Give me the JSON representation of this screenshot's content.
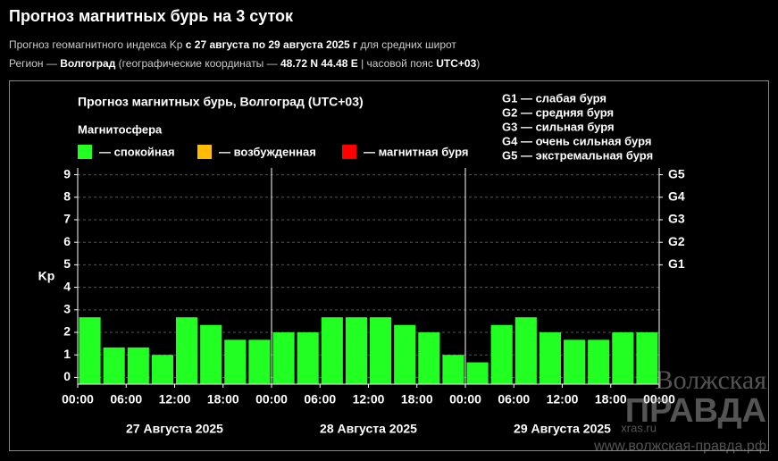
{
  "header": {
    "title": "Прогноз магнитных бурь на 3 суток",
    "line1": [
      "Прогноз геомагнитного индекса Kp",
      "с 27 августа по 29 августа 2025 г",
      "для средних широт"
    ],
    "line2": [
      "Регион —",
      "Волгоград",
      "(географические координаты —",
      "48.72 N 44.48 E",
      "| часовой пояс",
      "UTC+03",
      ")"
    ]
  },
  "watermark": [
    "Волжская",
    "ПРАВДА",
    "xras.ru",
    "www.волжская-правда.рф"
  ],
  "chart_data": {
    "type": "bar",
    "title": "Прогноз магнитных бурь, Волгоград (UTC+03)",
    "legend_title": "Магнитосфера",
    "legend": [
      {
        "name": "— спокойная",
        "color": "#22ff22"
      },
      {
        "name": "— возбужденная",
        "color": "#ffbb00"
      },
      {
        "name": "— магнитная буря",
        "color": "#ff0000"
      }
    ],
    "notes": [
      "G1 — слабая буря",
      "G2 — средняя буря",
      "G3 — сильная буря",
      "G4 — очень сильная буря",
      "G5 — экстремальная буря"
    ],
    "ylabel": "Kp",
    "x": [
      0,
      3,
      6,
      9,
      12,
      15,
      18,
      21,
      24,
      27,
      30,
      33,
      36,
      39,
      42,
      45,
      48,
      51,
      54,
      57,
      60,
      63,
      66,
      69
    ],
    "values": [
      2.67,
      1.33,
      1.33,
      1.0,
      2.67,
      2.33,
      1.67,
      1.67,
      2.0,
      2.0,
      2.67,
      2.67,
      2.67,
      2.33,
      2.0,
      1.0,
      0.67,
      2.33,
      2.67,
      2.0,
      1.67,
      1.67,
      2.0,
      2.0
    ],
    "color": "#22ff22",
    "xlim": [
      0,
      72
    ],
    "xticks": [
      {
        "value": 0,
        "label": "00:00"
      },
      {
        "value": 6,
        "label": "06:00"
      },
      {
        "value": 12,
        "label": "12:00"
      },
      {
        "value": 18,
        "label": "18:00"
      },
      {
        "value": 24,
        "label": "00:00"
      },
      {
        "value": 30,
        "label": "06:00"
      },
      {
        "value": 36,
        "label": "12:00"
      },
      {
        "value": 42,
        "label": "18:00"
      },
      {
        "value": 48,
        "label": "00:00"
      },
      {
        "value": 54,
        "label": "06:00"
      },
      {
        "value": 60,
        "label": "12:00"
      },
      {
        "value": 66,
        "label": "18:00"
      },
      {
        "value": 72,
        "label": "00:00"
      }
    ],
    "day_labels": [
      "27 Августа 2025",
      "28 Августа 2025",
      "29 Августа 2025"
    ],
    "ylim": [
      -0.3,
      9.3
    ],
    "yticks": [
      0,
      1,
      2,
      3,
      4,
      5,
      6,
      7,
      8,
      9
    ],
    "y2ticks": [
      {
        "value": 5,
        "label": "G1"
      },
      {
        "value": 6,
        "label": "G2"
      },
      {
        "value": 7,
        "label": "G3"
      },
      {
        "value": 8,
        "label": "G4"
      },
      {
        "value": 9,
        "label": "G5"
      }
    ],
    "grid": true
  }
}
